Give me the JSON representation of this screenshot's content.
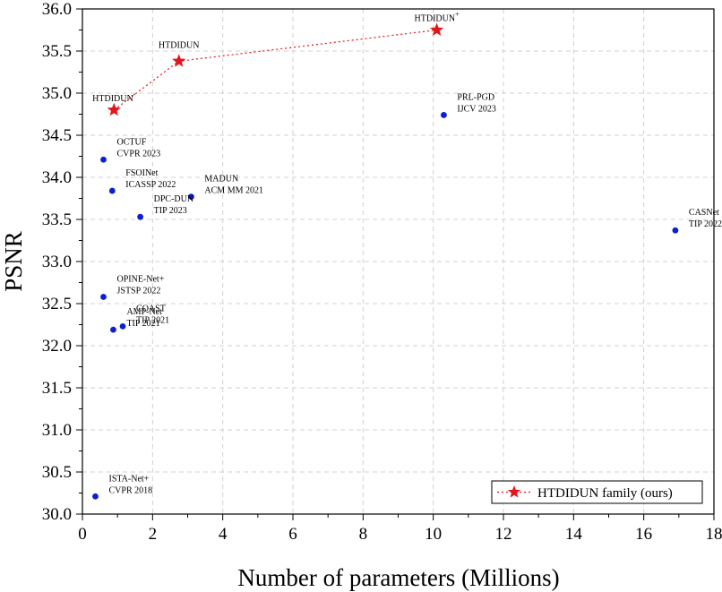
{
  "chart_data": {
    "type": "scatter",
    "xlabel": "Number of parameters (Millions)",
    "ylabel": "PSNR",
    "xlim": [
      0,
      18
    ],
    "ylim": [
      30.0,
      36.0
    ],
    "x_ticks": [
      0,
      2,
      4,
      6,
      8,
      10,
      12,
      14,
      16,
      18
    ],
    "y_ticks": [
      30.0,
      30.5,
      31.0,
      31.5,
      32.0,
      32.5,
      33.0,
      33.5,
      34.0,
      34.5,
      35.0,
      35.5,
      36.0
    ],
    "grid": true,
    "legend": {
      "position": "bottom-right",
      "entries": [
        "HTDIDUN family (ours)"
      ]
    },
    "colors": {
      "ours": "#e8141b",
      "others": "#0a1fd6",
      "grid": "#d0d0d0"
    },
    "series": [
      {
        "name": "HTDIDUN family (ours)",
        "marker": "star",
        "line": "dotted",
        "points": [
          {
            "x": 0.9,
            "y": 34.8,
            "label_lines": [
              "HTDIDUN",
              "-"
            ]
          },
          {
            "x": 2.75,
            "y": 35.38,
            "label_lines": [
              "HTDIDUN"
            ]
          },
          {
            "x": 10.1,
            "y": 35.75,
            "label_lines": [
              "HTDIDUN",
              "+"
            ]
          }
        ]
      },
      {
        "marker": "circle",
        "points": [
          {
            "x": 0.6,
            "y": 34.21,
            "label_lines": [
              "OCTUF",
              "CVPR 2023"
            ]
          },
          {
            "x": 0.85,
            "y": 33.84,
            "label_lines": [
              "FSOINet",
              "ICASSP 2022"
            ]
          },
          {
            "x": 3.1,
            "y": 33.77,
            "label_lines": [
              "MADUN",
              "ACM MM 2021"
            ]
          },
          {
            "x": 1.65,
            "y": 33.53,
            "label_lines": [
              "DPC-DUN",
              "TIP 2023"
            ]
          },
          {
            "x": 10.3,
            "y": 34.74,
            "label_lines": [
              "PRL-PGD",
              "IJCV 2023"
            ]
          },
          {
            "x": 16.9,
            "y": 33.37,
            "label_lines": [
              "CASNet",
              "TIP 2022"
            ]
          },
          {
            "x": 0.6,
            "y": 32.58,
            "label_lines": [
              "OPINE-Net+",
              "JSTSP 2022"
            ]
          },
          {
            "x": 0.88,
            "y": 32.19,
            "label_lines": [
              "AMP-Net",
              "TIP 2021"
            ]
          },
          {
            "x": 1.15,
            "y": 32.23,
            "label_lines": [
              "COAST",
              "TIP 2021"
            ]
          },
          {
            "x": 0.37,
            "y": 30.21,
            "label_lines": [
              "ISTA-Net+",
              "CVPR 2018"
            ]
          }
        ]
      }
    ]
  }
}
